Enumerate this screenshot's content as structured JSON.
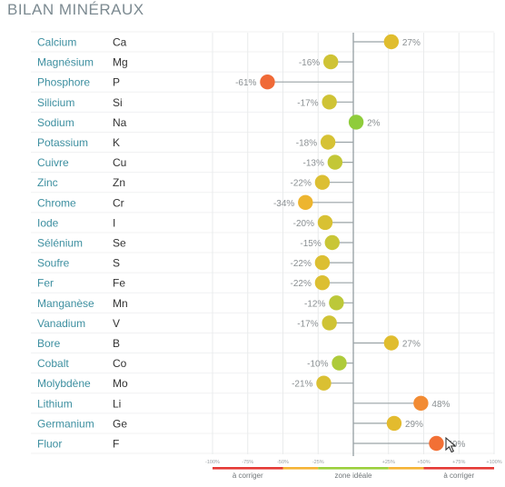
{
  "page": {
    "title": "BILAN MINÉRAUX"
  },
  "chart_data": {
    "type": "lollipop",
    "xlim": [
      -100,
      100
    ],
    "ticks": [
      {
        "value": -100,
        "label": "-100%"
      },
      {
        "value": -75,
        "label": "-75%"
      },
      {
        "value": -50,
        "label": "-50%"
      },
      {
        "value": -25,
        "label": "-25%"
      },
      {
        "value": 25,
        "label": "+25%"
      },
      {
        "value": 50,
        "label": "+50%"
      },
      {
        "value": 75,
        "label": "+75%"
      },
      {
        "value": 100,
        "label": "+100%"
      }
    ],
    "zones": [
      {
        "from": -100,
        "to": -50,
        "label": "à corriger",
        "color": "#e53935"
      },
      {
        "from": -50,
        "to": -25,
        "label": "",
        "color": "#f5b335"
      },
      {
        "from": -25,
        "to": 25,
        "label": "zone idéale",
        "color": "#9bcf3c"
      },
      {
        "from": 25,
        "to": 50,
        "label": "",
        "color": "#f5b335"
      },
      {
        "from": 50,
        "to": 100,
        "label": "à corriger",
        "color": "#e53935"
      }
    ],
    "rows": [
      {
        "name": "Calcium",
        "symbol": "Ca",
        "value": 27,
        "label": "27%",
        "color": "#e0bd2e"
      },
      {
        "name": "Magnésium",
        "symbol": "Mg",
        "value": -16,
        "label": "-16%",
        "color": "#cfc335"
      },
      {
        "name": "Phosphore",
        "symbol": "P",
        "value": -61,
        "label": "-61%",
        "color": "#f06a37"
      },
      {
        "name": "Silicium",
        "symbol": "Si",
        "value": -17,
        "label": "-17%",
        "color": "#cfc335"
      },
      {
        "name": "Sodium",
        "symbol": "Na",
        "value": 2,
        "label": "2%",
        "color": "#8fcc3b"
      },
      {
        "name": "Potassium",
        "symbol": "K",
        "value": -18,
        "label": "-18%",
        "color": "#d6c234"
      },
      {
        "name": "Cuivre",
        "symbol": "Cu",
        "value": -13,
        "label": "-13%",
        "color": "#c3c737"
      },
      {
        "name": "Zinc",
        "symbol": "Zn",
        "value": -22,
        "label": "-22%",
        "color": "#dcbf32"
      },
      {
        "name": "Chrome",
        "symbol": "Cr",
        "value": -34,
        "label": "-34%",
        "color": "#edb52f"
      },
      {
        "name": "Iode",
        "symbol": "I",
        "value": -20,
        "label": "-20%",
        "color": "#d8c133"
      },
      {
        "name": "Sélénium",
        "symbol": "Se",
        "value": -15,
        "label": "-15%",
        "color": "#c9c636"
      },
      {
        "name": "Soufre",
        "symbol": "S",
        "value": -22,
        "label": "-22%",
        "color": "#dcbf32"
      },
      {
        "name": "Fer",
        "symbol": "Fe",
        "value": -22,
        "label": "-22%",
        "color": "#dcbf32"
      },
      {
        "name": "Manganèse",
        "symbol": "Mn",
        "value": -12,
        "label": "-12%",
        "color": "#bcc839"
      },
      {
        "name": "Vanadium",
        "symbol": "V",
        "value": -17,
        "label": "-17%",
        "color": "#cfc335"
      },
      {
        "name": "Bore",
        "symbol": "B",
        "value": 27,
        "label": "27%",
        "color": "#e0bd2e"
      },
      {
        "name": "Cobalt",
        "symbol": "Co",
        "value": -10,
        "label": "-10%",
        "color": "#aecb3a"
      },
      {
        "name": "Molybdène",
        "symbol": "Mo",
        "value": -21,
        "label": "-21%",
        "color": "#dac032"
      },
      {
        "name": "Lithium",
        "symbol": "Li",
        "value": 48,
        "label": "48%",
        "color": "#f28b33"
      },
      {
        "name": "Germanium",
        "symbol": "Ge",
        "value": 29,
        "label": "29%",
        "color": "#e3bb2e"
      },
      {
        "name": "Fluor",
        "symbol": "F",
        "value": 59,
        "label": "59%",
        "color": "#f27035"
      }
    ]
  }
}
